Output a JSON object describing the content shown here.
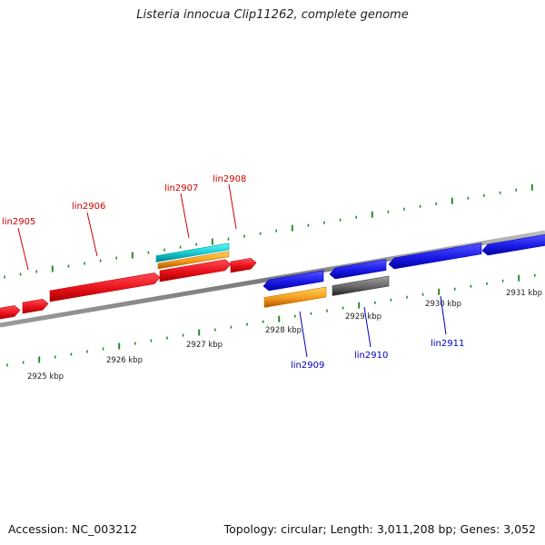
{
  "title": "Listeria innocua Clip11262, complete genome",
  "footer": {
    "accession": "Accession: NC_003212",
    "stats": "Topology: circular; Length: 3,011,208 bp; Genes: 3,052"
  },
  "colors": {
    "forward_gene": "#e8101a",
    "reverse_gene": "#1a1ae6",
    "cyan_feature": "#19c4cc",
    "orange_feature": "#f39a1e",
    "gray_feature": "#666666",
    "backbone": "#8a8a8a",
    "tick": "#2a8a2a",
    "forward_label": "#cc0000",
    "reverse_label": "#0000bb"
  },
  "scale": {
    "unit": "kbp",
    "labels": [
      "2925 kbp",
      "2926 kbp",
      "2927 kbp",
      "2928 kbp",
      "2929 kbp",
      "2930 kbp",
      "2931 kbp"
    ]
  },
  "forward_genes": [
    "lin2905",
    "lin2906",
    "lin2907",
    "lin2908"
  ],
  "reverse_genes": [
    "lin2909",
    "lin2910",
    "lin2911"
  ]
}
